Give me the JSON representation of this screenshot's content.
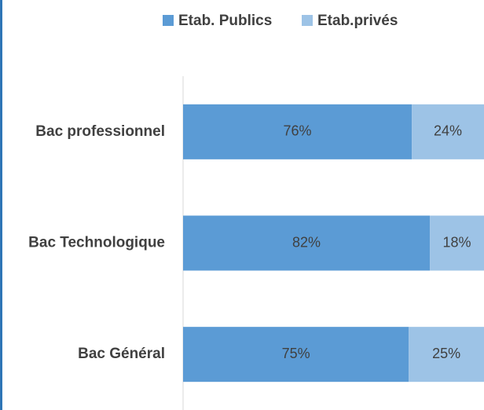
{
  "chart_data": {
    "type": "stacked_barh",
    "categories": [
      "Bac professionnel",
      "Bac Technologique",
      "Bac Général"
    ],
    "series": [
      {
        "name": "Etab. Publics",
        "color": "#5b9bd5",
        "values": [
          76,
          82,
          75
        ],
        "value_labels": [
          "76%",
          "82%",
          "75%"
        ]
      },
      {
        "name": "Etab.privés",
        "color": "#9dc3e6",
        "values": [
          24,
          18,
          25
        ],
        "value_labels": [
          "24%",
          "18%",
          "25%"
        ]
      }
    ],
    "xlim": [
      0,
      100
    ],
    "legend": "top"
  }
}
